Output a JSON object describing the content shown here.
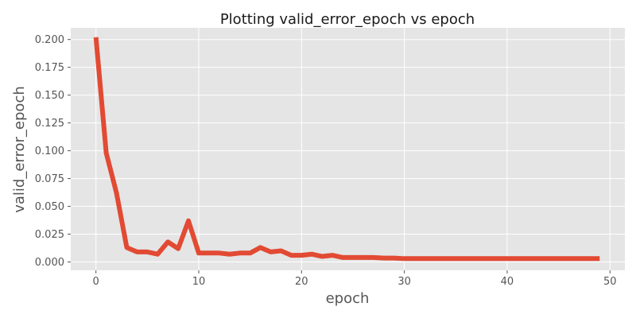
{
  "chart_data": {
    "type": "line",
    "title": "Plotting valid_error_epoch vs epoch",
    "xlabel": "epoch",
    "ylabel": "valid_error_epoch",
    "xlim": [
      -2.45,
      51.45
    ],
    "ylim": [
      -0.0075,
      0.2105
    ],
    "xticks": [
      0,
      10,
      20,
      30,
      40,
      50
    ],
    "yticks": [
      0.0,
      0.025,
      0.05,
      0.075,
      0.1,
      0.125,
      0.15,
      0.175,
      0.2
    ],
    "ytick_labels": [
      "0.000",
      "0.025",
      "0.050",
      "0.075",
      "0.100",
      "0.125",
      "0.150",
      "0.175",
      "0.200"
    ],
    "grid": true,
    "colors": {
      "line": "#E24A33",
      "background": "#E5E5E5",
      "grid": "#ffffff"
    },
    "series": [
      {
        "x": [
          0,
          1,
          2,
          3,
          4,
          5,
          6,
          7,
          8,
          9,
          10,
          11,
          12,
          13,
          14,
          15,
          16,
          17,
          18,
          19,
          20,
          21,
          22,
          23,
          24,
          25,
          26,
          27,
          28,
          29,
          30,
          31,
          32,
          33,
          34,
          35,
          36,
          37,
          38,
          39,
          40,
          41,
          42,
          43,
          44,
          45,
          46,
          47,
          48,
          49
        ],
        "values": [
          0.202,
          0.098,
          0.062,
          0.013,
          0.009,
          0.009,
          0.007,
          0.018,
          0.012,
          0.037,
          0.008,
          0.008,
          0.008,
          0.007,
          0.008,
          0.008,
          0.013,
          0.009,
          0.01,
          0.006,
          0.006,
          0.007,
          0.005,
          0.006,
          0.004,
          0.004,
          0.004,
          0.004,
          0.0035,
          0.0035,
          0.003,
          0.003,
          0.003,
          0.003,
          0.003,
          0.003,
          0.003,
          0.003,
          0.003,
          0.003,
          0.003,
          0.003,
          0.003,
          0.003,
          0.003,
          0.003,
          0.003,
          0.003,
          0.003,
          0.003
        ]
      }
    ]
  }
}
